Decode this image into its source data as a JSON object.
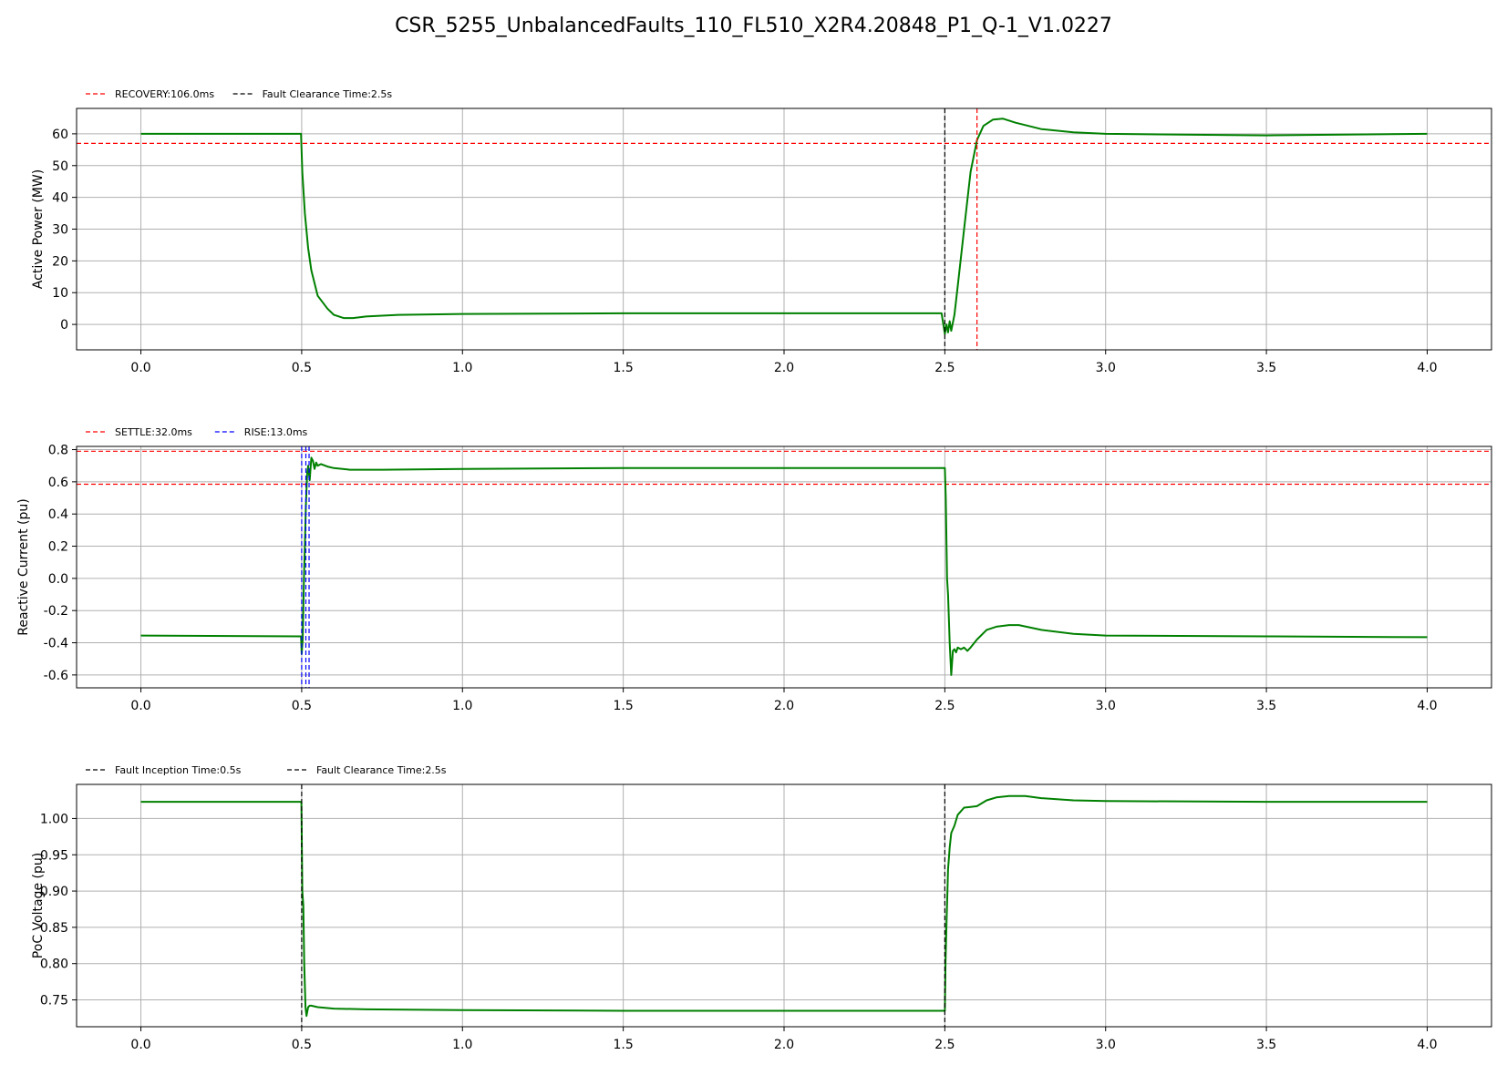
{
  "title": "CSR_5255_UnbalancedFaults_110_FL510_X2R4.20848_P1_Q-1_V1.0227",
  "colors": {
    "trace": "#008000",
    "recovery": "#ff0000",
    "marker": "#000000",
    "rise": "#0000ff",
    "grid": "#b0b0b0"
  },
  "chart_data": [
    {
      "type": "line",
      "ylabel": "Active Power (MW)",
      "xlim": [
        -0.2,
        4.2
      ],
      "ylim": [
        -8,
        68
      ],
      "x_ticks": [
        "0.0",
        "0.5",
        "1.0",
        "1.5",
        "2.0",
        "2.5",
        "3.0",
        "3.5",
        "4.0"
      ],
      "y_ticks": [
        "0",
        "10",
        "20",
        "30",
        "40",
        "50",
        "60"
      ],
      "grid": true,
      "legend": [
        {
          "label": "RECOVERY:106.0ms",
          "color": "#ff0000"
        },
        {
          "label": "Fault Clearance Time:2.5s",
          "color": "#000000"
        }
      ],
      "legend_position": "top-left outside",
      "hlines": [
        {
          "y": 57,
          "color": "#ff0000"
        }
      ],
      "vlines": [
        {
          "x": 2.5,
          "color": "#000000"
        },
        {
          "x": 2.6,
          "color": "#ff0000"
        }
      ],
      "series": [
        {
          "color": "#008000",
          "x": [
            0,
            0.498,
            0.502,
            0.51,
            0.52,
            0.53,
            0.55,
            0.58,
            0.6,
            0.63,
            0.66,
            0.7,
            0.8,
            1.0,
            1.5,
            2.0,
            2.49,
            2.5,
            2.505,
            2.51,
            2.515,
            2.52,
            2.53,
            2.54,
            2.56,
            2.58,
            2.6,
            2.62,
            2.65,
            2.68,
            2.72,
            2.8,
            2.9,
            3.0,
            3.5,
            4.0
          ],
          "y": [
            60,
            60,
            48,
            35,
            24,
            17,
            9,
            5,
            3,
            2,
            2,
            2.5,
            3,
            3.3,
            3.5,
            3.5,
            3.5,
            -3,
            0,
            -2.5,
            1,
            -2,
            3,
            12,
            30,
            48,
            58,
            62.5,
            64.5,
            64.8,
            63.5,
            61.5,
            60.5,
            60,
            59.5,
            60
          ]
        }
      ]
    },
    {
      "type": "line",
      "ylabel": "Reactive Current (pu)",
      "xlim": [
        -0.2,
        4.2
      ],
      "ylim": [
        -0.68,
        0.82
      ],
      "x_ticks": [
        "0.0",
        "0.5",
        "1.0",
        "1.5",
        "2.0",
        "2.5",
        "3.0",
        "3.5",
        "4.0"
      ],
      "y_ticks": [
        "-0.6",
        "-0.4",
        "-0.2",
        "0.0",
        "0.2",
        "0.4",
        "0.6",
        "0.8"
      ],
      "grid": true,
      "legend": [
        {
          "label": "SETTLE:32.0ms",
          "color": "#ff0000"
        },
        {
          "label": "RISE:13.0ms",
          "color": "#0000ff"
        }
      ],
      "legend_position": "top-left outside",
      "hlines": [
        {
          "y": 0.79,
          "color": "#ff0000"
        },
        {
          "y": 0.585,
          "color": "#ff0000"
        }
      ],
      "vlines": [
        {
          "x": 0.5,
          "color": "#0000ff"
        },
        {
          "x": 0.513,
          "color": "#0000ff"
        },
        {
          "x": 0.523,
          "color": "#0000ff"
        }
      ],
      "series": [
        {
          "color": "#008000",
          "x": [
            0,
            0.498,
            0.5,
            0.503,
            0.507,
            0.51,
            0.513,
            0.517,
            0.52,
            0.525,
            0.53,
            0.535,
            0.54,
            0.545,
            0.55,
            0.56,
            0.58,
            0.6,
            0.65,
            0.75,
            1.0,
            1.5,
            2.0,
            2.5,
            2.503,
            2.507,
            2.51,
            2.515,
            2.52,
            2.525,
            2.53,
            2.535,
            2.54,
            2.55,
            2.56,
            2.57,
            2.58,
            2.6,
            2.63,
            2.66,
            2.7,
            2.73,
            2.8,
            2.9,
            3.0,
            3.5,
            4.0
          ],
          "y": [
            -0.355,
            -0.36,
            -0.47,
            -0.38,
            0.0,
            0.2,
            0.45,
            0.65,
            0.7,
            0.61,
            0.75,
            0.73,
            0.68,
            0.72,
            0.7,
            0.71,
            0.695,
            0.685,
            0.675,
            0.675,
            0.68,
            0.685,
            0.685,
            0.685,
            0.5,
            0.0,
            -0.1,
            -0.4,
            -0.6,
            -0.45,
            -0.44,
            -0.46,
            -0.43,
            -0.44,
            -0.43,
            -0.45,
            -0.43,
            -0.38,
            -0.32,
            -0.3,
            -0.29,
            -0.29,
            -0.32,
            -0.345,
            -0.355,
            -0.36,
            -0.365
          ]
        }
      ]
    },
    {
      "type": "line",
      "ylabel": "PoC Voltage (pu)",
      "xlim": [
        -0.2,
        4.2
      ],
      "ylim": [
        0.713,
        1.047
      ],
      "x_ticks": [
        "0.0",
        "0.5",
        "1.0",
        "1.5",
        "2.0",
        "2.5",
        "3.0",
        "3.5",
        "4.0"
      ],
      "y_ticks": [
        "0.75",
        "0.80",
        "0.85",
        "0.90",
        "0.95",
        "1.00"
      ],
      "grid": true,
      "legend": [
        {
          "label": "Fault Inception Time:0.5s",
          "color": "#000000"
        },
        {
          "label": "Fault Clearance Time:2.5s",
          "color": "#000000"
        }
      ],
      "legend_position": "top-left outside",
      "hlines": [],
      "vlines": [
        {
          "x": 0.5,
          "color": "#000000"
        },
        {
          "x": 2.5,
          "color": "#000000"
        }
      ],
      "series": [
        {
          "color": "#008000",
          "x": [
            0,
            0.499,
            0.502,
            0.505,
            0.508,
            0.512,
            0.515,
            0.52,
            0.525,
            0.53,
            0.55,
            0.6,
            0.7,
            1.0,
            1.5,
            2.0,
            2.5,
            2.502,
            2.505,
            2.51,
            2.515,
            2.52,
            2.53,
            2.54,
            2.56,
            2.58,
            2.6,
            2.63,
            2.66,
            2.7,
            2.75,
            2.8,
            2.9,
            3.0,
            3.5,
            4.0
          ],
          "y": [
            1.023,
            1.023,
            0.9,
            0.88,
            0.8,
            0.74,
            0.728,
            0.74,
            0.742,
            0.742,
            0.74,
            0.738,
            0.737,
            0.736,
            0.735,
            0.735,
            0.735,
            0.8,
            0.85,
            0.93,
            0.96,
            0.98,
            0.99,
            1.005,
            1.015,
            1.016,
            1.017,
            1.025,
            1.029,
            1.031,
            1.031,
            1.028,
            1.025,
            1.024,
            1.023,
            1.023
          ]
        }
      ]
    }
  ]
}
